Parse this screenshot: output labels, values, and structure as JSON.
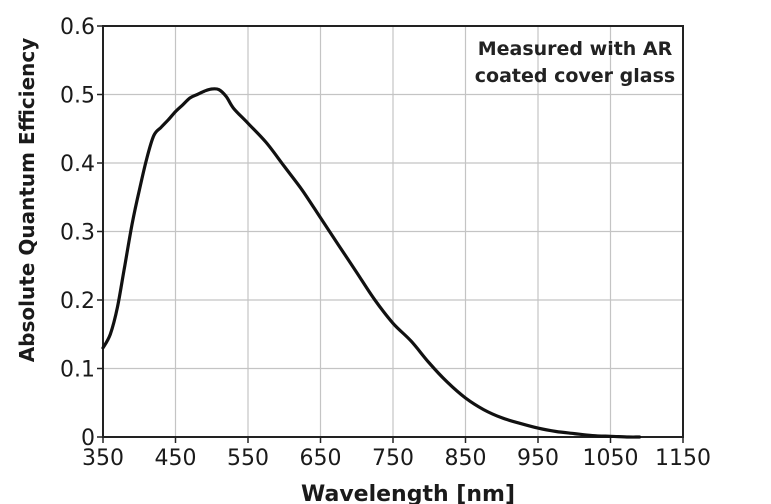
{
  "chart_data": {
    "type": "line",
    "title": "",
    "xlabel": "Wavelength [nm]",
    "ylabel": "Absolute Quantum Efficiency",
    "xlim": [
      350,
      1150
    ],
    "ylim": [
      0,
      0.6
    ],
    "x_ticks": [
      350,
      450,
      550,
      650,
      750,
      850,
      950,
      1050,
      1150
    ],
    "y_ticks": [
      0,
      0.1,
      0.2,
      0.3,
      0.4,
      0.5,
      0.6
    ],
    "x_tick_labels": [
      "350",
      "450",
      "550",
      "650",
      "750",
      "850",
      "950",
      "1050",
      "1150"
    ],
    "y_tick_labels": [
      "0",
      "0.1",
      "0.2",
      "0.3",
      "0.4",
      "0.5",
      "0.6"
    ],
    "grid": true,
    "annotation": [
      "Measured with AR",
      "coated cover glass"
    ],
    "series": [
      {
        "color": "#111111",
        "x": [
          350,
          360,
          370,
          380,
          390,
          400,
          410,
          420,
          430,
          440,
          450,
          460,
          470,
          480,
          490,
          500,
          510,
          520,
          530,
          550,
          575,
          600,
          625,
          650,
          675,
          700,
          725,
          750,
          775,
          800,
          825,
          850,
          875,
          900,
          925,
          950,
          975,
          1000,
          1025,
          1050,
          1075,
          1090
        ],
        "y": [
          0.13,
          0.15,
          0.19,
          0.25,
          0.31,
          0.36,
          0.405,
          0.44,
          0.452,
          0.463,
          0.475,
          0.485,
          0.495,
          0.5,
          0.505,
          0.508,
          0.507,
          0.497,
          0.48,
          0.458,
          0.43,
          0.395,
          0.36,
          0.32,
          0.28,
          0.24,
          0.2,
          0.166,
          0.14,
          0.108,
          0.08,
          0.057,
          0.04,
          0.028,
          0.02,
          0.013,
          0.008,
          0.005,
          0.002,
          0.001,
          0.0,
          0.0
        ]
      }
    ]
  }
}
